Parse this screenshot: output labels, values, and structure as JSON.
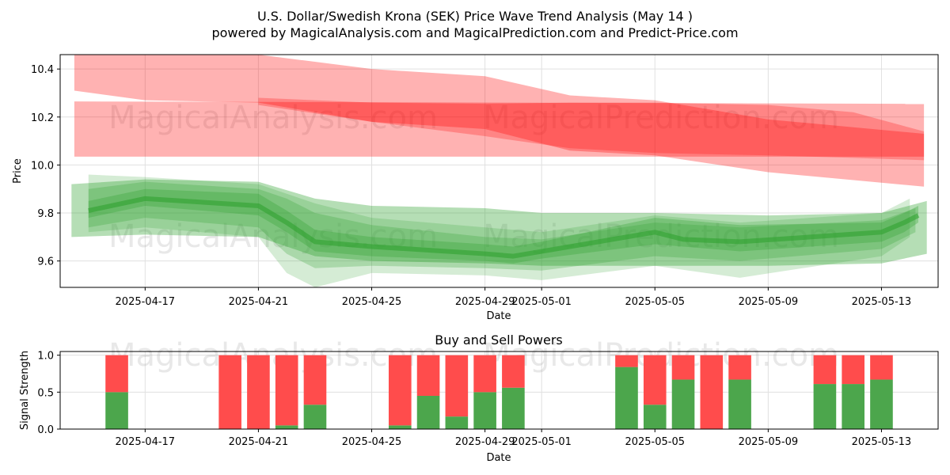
{
  "title_line1": "U.S. Dollar/Swedish Krona (SEK) Price Wave Trend Analysis (May 14 )",
  "title_line2": "powered by MagicalAnalysis.com and MagicalPrediction.com and Predict-Price.com",
  "watermarks": {
    "left": "MagicalAnalysis.com",
    "right": "MagicalPrediction.com"
  },
  "colors": {
    "red_band": "#ff0000",
    "green_band": "#2ca02c",
    "bar_sell": "#ff4c4c",
    "bar_buy": "#4ca64c",
    "grid": "#e0e0e0"
  },
  "chart_data": [
    {
      "type": "area",
      "title": "",
      "xlabel": "Date",
      "ylabel": "Price",
      "x_range": [
        "2025-04-14",
        "2025-05-15"
      ],
      "x_tick_labels": [
        "2025-04-17",
        "2025-04-21",
        "2025-04-25",
        "2025-04-29",
        "2025-05-01",
        "2025-05-05",
        "2025-05-09",
        "2025-05-13"
      ],
      "x_tick_days": [
        3,
        7,
        11,
        15,
        17,
        21,
        25,
        29
      ],
      "ylim": [
        9.49,
        10.46
      ],
      "y_ticks": [
        9.6,
        9.8,
        10.0,
        10.2,
        10.4
      ],
      "y_tick_labels": [
        "9.6",
        "9.8",
        "10.0",
        "10.2",
        "10.4"
      ],
      "grid": true,
      "series": [
        {
          "name": "red-band-1",
          "color": "#ff0000",
          "opacity": 0.3,
          "x": [
            0.5,
            30.5
          ],
          "upper": [
            10.265,
            10.255
          ],
          "lower": [
            10.035,
            10.035
          ]
        },
        {
          "name": "red-band-2",
          "color": "#ff0000",
          "opacity": 0.3,
          "x": [
            0.5,
            3,
            7,
            11,
            15,
            18,
            21,
            25,
            30.5
          ],
          "upper": [
            10.46,
            10.46,
            10.46,
            10.4,
            10.37,
            10.29,
            10.27,
            10.19,
            10.13
          ],
          "lower": [
            10.31,
            10.27,
            10.26,
            10.18,
            10.15,
            10.06,
            10.04,
            9.97,
            9.91
          ]
        },
        {
          "name": "red-band-3",
          "color": "#ff0000",
          "opacity": 0.25,
          "x": [
            7,
            11,
            15,
            18,
            21,
            25,
            28,
            30.5
          ],
          "upper": [
            10.28,
            10.26,
            10.255,
            10.26,
            10.26,
            10.25,
            10.22,
            10.14
          ],
          "lower": [
            10.25,
            10.18,
            10.12,
            10.07,
            10.05,
            10.04,
            10.03,
            10.02
          ]
        },
        {
          "name": "green-band-outer",
          "color": "#2ca02c",
          "opacity": 0.35,
          "x": [
            0.4,
            3,
            7,
            9,
            11,
            15,
            17,
            21,
            25,
            29,
            30.6
          ],
          "upper": [
            9.92,
            9.94,
            9.93,
            9.86,
            9.83,
            9.82,
            9.8,
            9.8,
            9.79,
            9.8,
            9.85
          ],
          "lower": [
            9.7,
            9.71,
            9.7,
            9.62,
            9.6,
            9.59,
            9.58,
            9.58,
            9.58,
            9.59,
            9.63
          ]
        },
        {
          "name": "green-band-mid-1",
          "color": "#2ca02c",
          "opacity": 0.3,
          "x": [
            1,
            3,
            7,
            8,
            9,
            11,
            15,
            16,
            17,
            21,
            24,
            29,
            29.8,
            30.3
          ],
          "upper": [
            9.85,
            9.9,
            9.88,
            9.81,
            9.73,
            9.7,
            9.67,
            9.66,
            9.68,
            9.78,
            9.75,
            9.76,
            9.8,
            9.83
          ],
          "lower": [
            9.78,
            9.83,
            9.79,
            9.72,
            9.64,
            9.62,
            9.6,
            9.59,
            9.61,
            9.67,
            9.64,
            9.68,
            9.72,
            9.76
          ]
        },
        {
          "name": "green-band-mid-2",
          "color": "#2ca02c",
          "opacity": 0.25,
          "x": [
            1,
            3,
            7,
            8,
            9,
            11,
            15,
            17,
            21,
            24,
            29,
            30.2
          ],
          "upper": [
            9.9,
            9.93,
            9.9,
            9.86,
            9.8,
            9.75,
            9.7,
            9.69,
            9.76,
            9.74,
            9.77,
            9.82
          ],
          "lower": [
            9.74,
            9.78,
            9.74,
            9.63,
            9.57,
            9.58,
            9.57,
            9.56,
            9.62,
            9.6,
            9.65,
            9.72
          ]
        },
        {
          "name": "green-band-spread",
          "color": "#2ca02c",
          "opacity": 0.2,
          "x": [
            1,
            3,
            7,
            8,
            9,
            11,
            15,
            17,
            21,
            24,
            29,
            30
          ],
          "upper": [
            9.96,
            9.95,
            9.92,
            9.88,
            9.84,
            9.78,
            9.74,
            9.72,
            9.79,
            9.76,
            9.8,
            9.86
          ],
          "lower": [
            9.72,
            9.74,
            9.7,
            9.55,
            9.49,
            9.55,
            9.54,
            9.52,
            9.58,
            9.53,
            9.62,
            9.7
          ]
        },
        {
          "name": "green-core-line",
          "color": "#2ca02c",
          "opacity": 0.55,
          "stroke_only": true,
          "x": [
            1,
            3,
            7,
            8,
            9,
            11,
            15,
            16,
            17,
            21,
            22,
            24,
            29,
            29.8,
            30.3
          ],
          "values": [
            9.81,
            9.86,
            9.83,
            9.76,
            9.68,
            9.66,
            9.63,
            9.62,
            9.64,
            9.72,
            9.69,
            9.68,
            9.72,
            9.76,
            9.79
          ]
        }
      ]
    },
    {
      "type": "bar",
      "title": "Buy and Sell Powers",
      "xlabel": "Date",
      "ylabel": "Signal Strength",
      "x_range": [
        "2025-04-14",
        "2025-05-15"
      ],
      "x_tick_labels": [
        "2025-04-17",
        "2025-04-21",
        "2025-04-25",
        "2025-04-29",
        "2025-05-01",
        "2025-05-05",
        "2025-05-09",
        "2025-05-13"
      ],
      "x_tick_days": [
        3,
        7,
        11,
        15,
        17,
        21,
        25,
        29
      ],
      "ylim": [
        0,
        1.05
      ],
      "y_ticks": [
        0.0,
        0.5,
        1.0
      ],
      "y_tick_labels": [
        "0.0",
        "0.5",
        "1.0"
      ],
      "grid": true,
      "bar_days": [
        2,
        6,
        7,
        8,
        9,
        12,
        13,
        14,
        15,
        16,
        20,
        21,
        22,
        23,
        24,
        27,
        28,
        29
      ],
      "series": [
        {
          "name": "Buy",
          "color": "#4ca64c",
          "values": [
            0.5,
            0.0,
            0.0,
            0.05,
            0.33,
            0.05,
            0.45,
            0.17,
            0.5,
            0.56,
            0.84,
            0.33,
            0.67,
            0.0,
            0.67,
            0.61,
            0.61,
            0.67
          ]
        },
        {
          "name": "Sell",
          "color": "#ff4c4c",
          "values": [
            0.5,
            1.0,
            1.0,
            0.95,
            0.67,
            0.95,
            0.55,
            0.83,
            0.5,
            0.44,
            0.16,
            0.67,
            0.33,
            1.0,
            0.33,
            0.39,
            0.39,
            0.33
          ]
        }
      ]
    }
  ]
}
